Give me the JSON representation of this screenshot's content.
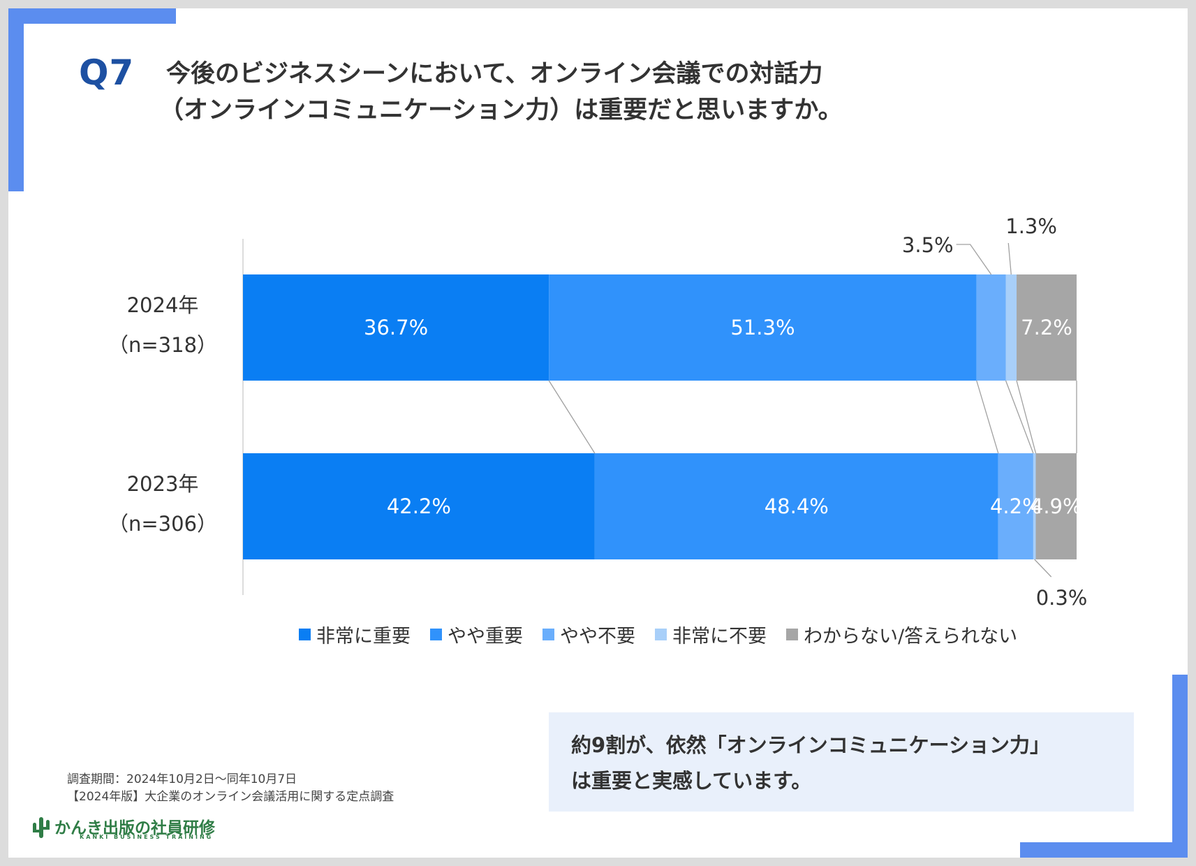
{
  "question": {
    "number": "Q7",
    "line1": "今後のビジネスシーンにおいて、オンライン会議での対話力",
    "line2": "（オンラインコミュニケーション力）は重要だと思いますか。"
  },
  "colors": {
    "very_important": "#0a7ef3",
    "somewhat_important": "#3092fb",
    "somewhat_unimportant": "#6aaefc",
    "not_important": "#a8cff9",
    "dont_know": "#a6a6a6",
    "accent": "#5b8def",
    "question_number": "#1d50a2"
  },
  "chart_data": {
    "type": "bar",
    "orientation": "horizontal",
    "stacked": true,
    "categories": [
      {
        "label": "2024年",
        "n": "（n=318）"
      },
      {
        "label": "2023年",
        "n": "（n=306）"
      }
    ],
    "series": [
      {
        "name": "非常に重要",
        "values": [
          36.7,
          42.2
        ],
        "labels": [
          "36.7%",
          "42.2%"
        ]
      },
      {
        "name": "やや重要",
        "values": [
          51.3,
          48.4
        ],
        "labels": [
          "51.3%",
          "48.4%"
        ]
      },
      {
        "name": "やや不要",
        "values": [
          3.5,
          4.2
        ],
        "labels": [
          "3.5%",
          "4.2%"
        ]
      },
      {
        "name": "非常に不要",
        "values": [
          1.3,
          0.3
        ],
        "labels": [
          "1.3%",
          "0.3%"
        ]
      },
      {
        "name": "わからない/答えられない",
        "values": [
          7.2,
          4.9
        ],
        "labels": [
          "7.2%",
          "4.9%"
        ]
      }
    ],
    "xlim": [
      0,
      100
    ],
    "legend_position": "bottom",
    "grid": false,
    "connector_lines": true
  },
  "legend": [
    {
      "label": "非常に重要",
      "color_key": "very_important"
    },
    {
      "label": "やや重要",
      "color_key": "somewhat_important"
    },
    {
      "label": "やや不要",
      "color_key": "somewhat_unimportant"
    },
    {
      "label": "非常に不要",
      "color_key": "not_important"
    },
    {
      "label": "わからない/答えられない",
      "color_key": "dont_know"
    }
  ],
  "callout": {
    "text": "約9割が、依然「オンラインコミュニケーション力」\nは重要と実感しています。"
  },
  "source": {
    "period": "調査期間：2024年10月2日〜同年10月7日",
    "survey": "【2024年版】大企業のオンライン会議活用に関する定点調査"
  },
  "logo": {
    "name": "かんき出版の社員研修",
    "sub": "KANKI BUSINESS TRAINING"
  }
}
